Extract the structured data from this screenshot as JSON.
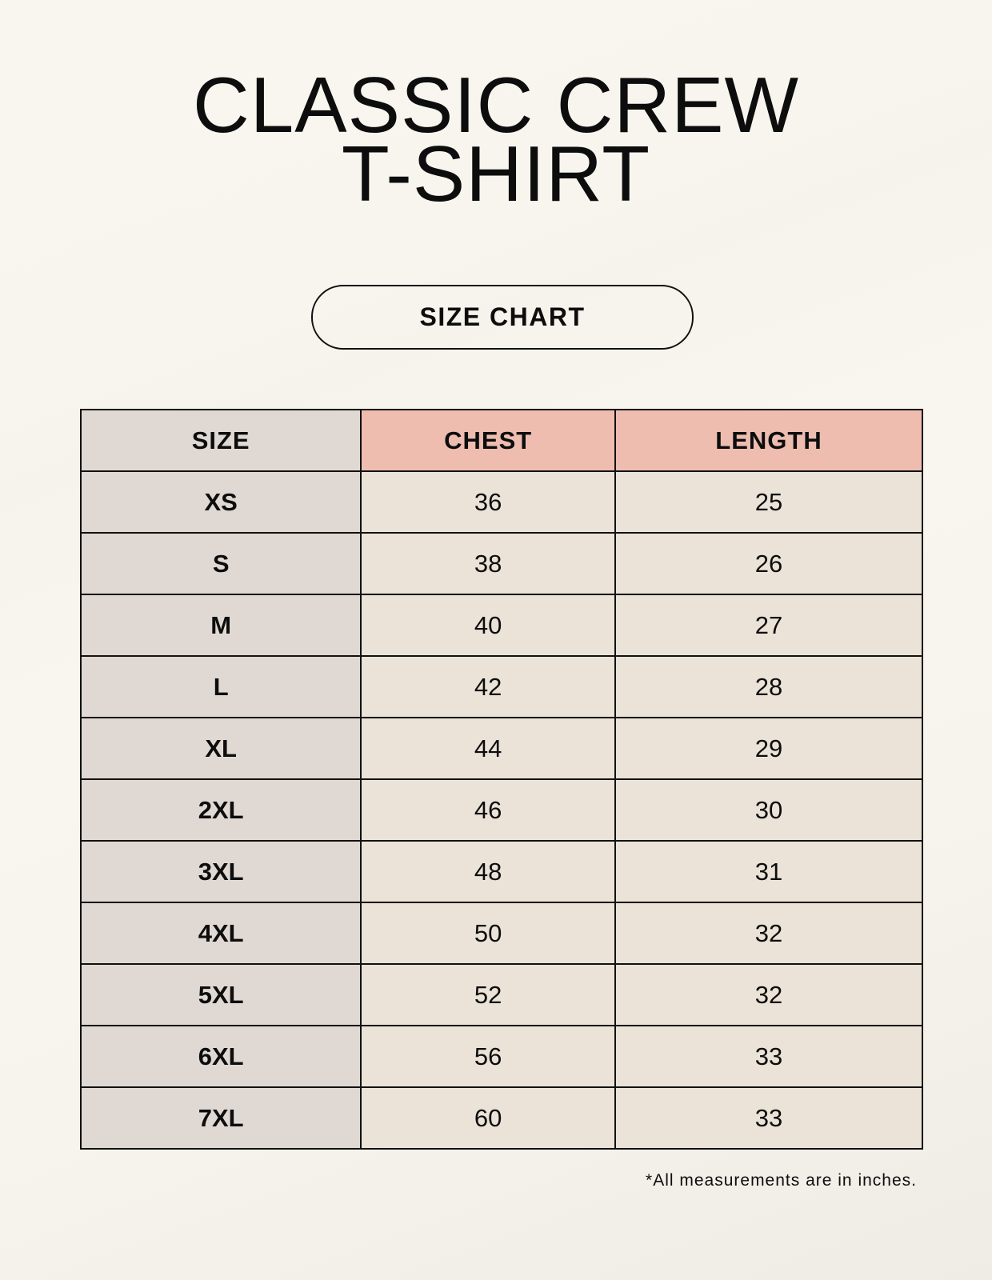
{
  "title": {
    "line1": "CLASSIC CREW",
    "line2": "T-SHIRT"
  },
  "subtitle": "SIZE CHART",
  "table": {
    "headers": [
      "SIZE",
      "CHEST",
      "LENGTH"
    ],
    "rows": [
      [
        "XS",
        "36",
        "25"
      ],
      [
        "S",
        "38",
        "26"
      ],
      [
        "M",
        "40",
        "27"
      ],
      [
        "L",
        "42",
        "28"
      ],
      [
        "XL",
        "44",
        "29"
      ],
      [
        "2XL",
        "46",
        "30"
      ],
      [
        "3XL",
        "48",
        "31"
      ],
      [
        "4XL",
        "50",
        "32"
      ],
      [
        "5XL",
        "52",
        "32"
      ],
      [
        "6XL",
        "56",
        "33"
      ],
      [
        "7XL",
        "60",
        "33"
      ]
    ]
  },
  "footnote": "*All measurements are in inches.",
  "colors": {
    "size_column": "#e0d9d3",
    "header_accent": "#eebdb0",
    "value_cells": "#ebe3d8"
  }
}
